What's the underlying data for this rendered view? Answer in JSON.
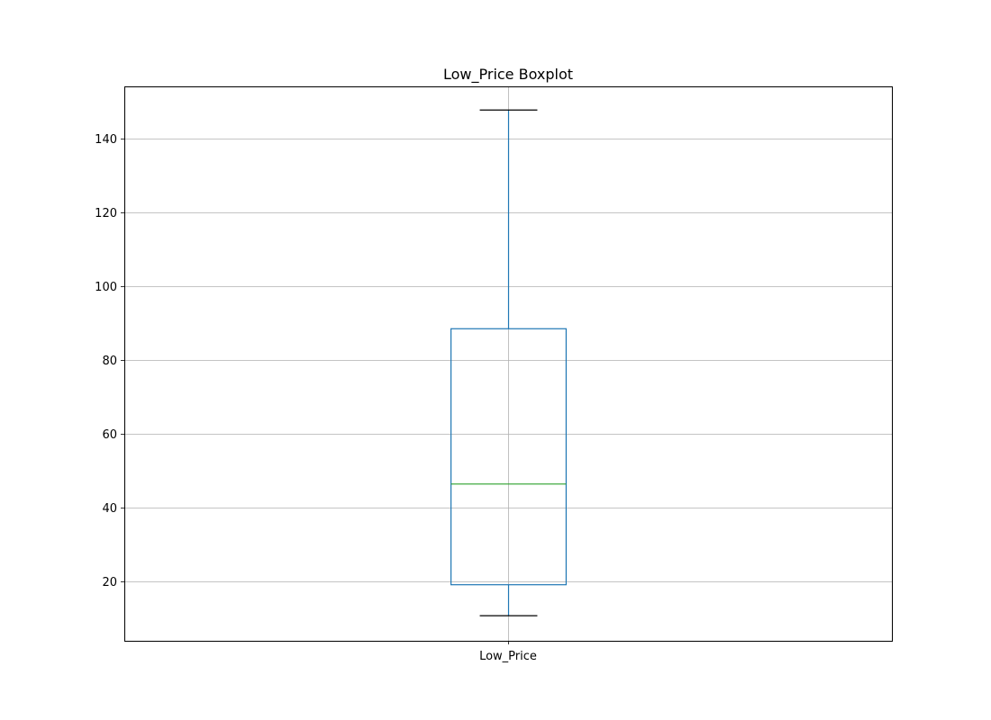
{
  "chart_data": {
    "type": "boxplot",
    "title": "Low_Price Boxplot",
    "xlabel": "",
    "ylabel": "",
    "categories": [
      "Low_Price"
    ],
    "boxes": [
      {
        "label": "Low_Price",
        "whisker_low": 10.7,
        "q1": 19.1,
        "median": 46.4,
        "q3": 88.5,
        "whisker_high": 147.8,
        "outliers": []
      }
    ],
    "ylim": [
      3.9,
      154.2
    ],
    "yticks": [
      20,
      40,
      60,
      80,
      100,
      120,
      140
    ],
    "ytick_labels": [
      "20",
      "40",
      "60",
      "80",
      "100",
      "120",
      "140"
    ],
    "grid": true,
    "colors": {
      "box": "#1f77b4",
      "median": "#2ca02c",
      "whisker_cap": "#000000",
      "grid": "#b0b0b0",
      "frame": "#000000"
    }
  }
}
